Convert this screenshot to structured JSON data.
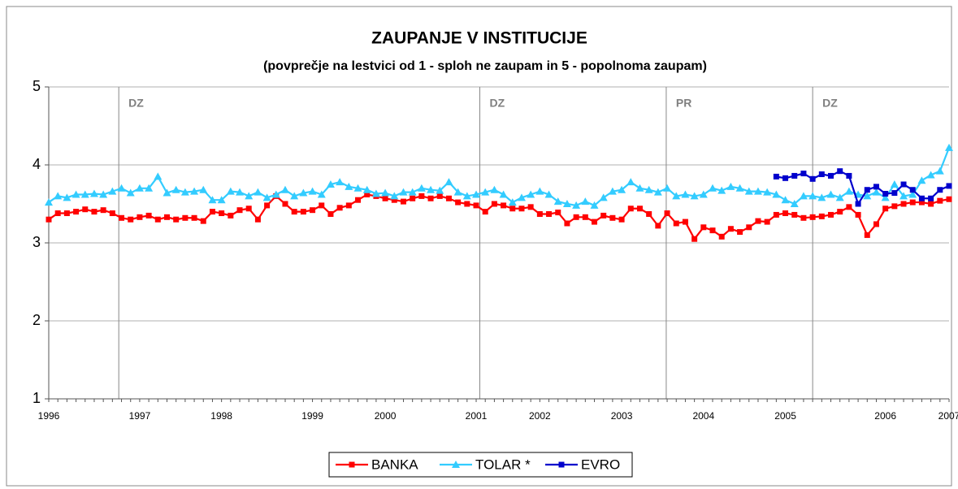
{
  "chart_data": {
    "type": "line",
    "title": "ZAUPANJE V INSTITUCIJE",
    "subtitle": "(povprečje na lestvici od 1 - sploh ne zaupam in 5 - popolnoma zaupam)",
    "categories": [
      "1996",
      null,
      null,
      null,
      null,
      null,
      null,
      null,
      null,
      null,
      "1997",
      null,
      null,
      null,
      null,
      null,
      null,
      null,
      null,
      "1998",
      null,
      null,
      null,
      null,
      null,
      null,
      null,
      null,
      null,
      "1999",
      null,
      null,
      null,
      null,
      null,
      null,
      null,
      "2000",
      null,
      null,
      null,
      null,
      null,
      null,
      null,
      null,
      null,
      "2001",
      null,
      null,
      null,
      null,
      null,
      null,
      "2002",
      null,
      null,
      null,
      null,
      null,
      null,
      null,
      null,
      "2003",
      null,
      null,
      null,
      null,
      null,
      null,
      null,
      null,
      "2004",
      null,
      null,
      null,
      null,
      null,
      null,
      null,
      null,
      "2005",
      null,
      null,
      null,
      null,
      null,
      null,
      null,
      null,
      null,
      null,
      "2006",
      null,
      null,
      null,
      null,
      null,
      null,
      "2007"
    ],
    "series": [
      {
        "name": "BANKA",
        "color": "#ff0000",
        "marker": "square",
        "values": [
          3.3,
          3.38,
          3.38,
          3.4,
          3.43,
          3.4,
          3.42,
          3.38,
          3.32,
          3.3,
          3.33,
          3.35,
          3.3,
          3.33,
          3.3,
          3.32,
          3.32,
          3.28,
          3.4,
          3.38,
          3.35,
          3.42,
          3.44,
          3.3,
          3.48,
          3.6,
          3.5,
          3.4,
          3.4,
          3.42,
          3.48,
          3.37,
          3.45,
          3.48,
          3.55,
          3.62,
          3.6,
          3.57,
          3.55,
          3.53,
          3.57,
          3.6,
          3.57,
          3.6,
          3.57,
          3.52,
          3.5,
          3.48,
          3.4,
          3.5,
          3.48,
          3.44,
          3.44,
          3.46,
          3.37,
          3.37,
          3.39,
          3.25,
          3.33,
          3.33,
          3.27,
          3.35,
          3.32,
          3.3,
          3.44,
          3.44,
          3.37,
          3.22,
          3.38,
          3.25,
          3.27,
          3.05,
          3.2,
          3.16,
          3.08,
          3.18,
          3.14,
          3.2,
          3.28,
          3.27,
          3.36,
          3.38,
          3.36,
          3.32,
          3.33,
          3.34,
          3.36,
          3.4,
          3.46,
          3.36,
          3.1,
          3.24,
          3.44,
          3.47,
          3.5,
          3.52,
          3.52,
          3.5,
          3.54,
          3.56
        ]
      },
      {
        "name": "TOLAR *",
        "color": "#33ccff",
        "marker": "triangle",
        "values": [
          3.52,
          3.6,
          3.58,
          3.62,
          3.62,
          3.63,
          3.62,
          3.66,
          3.7,
          3.64,
          3.7,
          3.7,
          3.85,
          3.64,
          3.68,
          3.65,
          3.66,
          3.68,
          3.55,
          3.55,
          3.66,
          3.65,
          3.6,
          3.65,
          3.58,
          3.62,
          3.68,
          3.6,
          3.64,
          3.66,
          3.62,
          3.75,
          3.78,
          3.72,
          3.7,
          3.68,
          3.63,
          3.64,
          3.6,
          3.65,
          3.65,
          3.7,
          3.68,
          3.67,
          3.78,
          3.65,
          3.6,
          3.62,
          3.65,
          3.68,
          3.62,
          3.52,
          3.58,
          3.62,
          3.66,
          3.62,
          3.53,
          3.5,
          3.48,
          3.53,
          3.48,
          3.58,
          3.66,
          3.68,
          3.78,
          3.7,
          3.68,
          3.65,
          3.7,
          3.6,
          3.62,
          3.6,
          3.62,
          3.7,
          3.67,
          3.72,
          3.7,
          3.66,
          3.66,
          3.65,
          3.62,
          3.55,
          3.5,
          3.6,
          3.6,
          3.58,
          3.62,
          3.58,
          3.66,
          3.62,
          3.6,
          3.65,
          3.58,
          3.75,
          3.6,
          3.62,
          3.8,
          3.87,
          3.92,
          4.22
        ]
      },
      {
        "name": "EVRO",
        "color": "#0000cc",
        "marker": "square",
        "values": [
          null,
          null,
          null,
          null,
          null,
          null,
          null,
          null,
          null,
          null,
          null,
          null,
          null,
          null,
          null,
          null,
          null,
          null,
          null,
          null,
          null,
          null,
          null,
          null,
          null,
          null,
          null,
          null,
          null,
          null,
          null,
          null,
          null,
          null,
          null,
          null,
          null,
          null,
          null,
          null,
          null,
          null,
          null,
          null,
          null,
          null,
          null,
          null,
          null,
          null,
          null,
          null,
          null,
          null,
          null,
          null,
          null,
          null,
          null,
          null,
          null,
          null,
          null,
          null,
          null,
          null,
          null,
          null,
          null,
          null,
          null,
          null,
          null,
          null,
          null,
          null,
          null,
          null,
          null,
          null,
          3.85,
          3.83,
          3.86,
          3.89,
          3.82,
          3.88,
          3.86,
          3.92,
          3.86,
          3.5,
          3.68,
          3.72,
          3.63,
          3.64,
          3.75,
          3.68,
          3.57,
          3.57,
          3.68,
          3.73
        ]
      }
    ],
    "annotations": [
      {
        "text": "DZ",
        "x": 7.7
      },
      {
        "text": "DZ",
        "x": 47.4
      },
      {
        "text": "PR",
        "x": 67.9
      },
      {
        "text": "DZ",
        "x": 84
      }
    ],
    "ylim": [
      1,
      5
    ],
    "yticks": [
      1,
      2,
      3,
      4,
      5
    ],
    "grid": true,
    "legend": "bottom"
  }
}
